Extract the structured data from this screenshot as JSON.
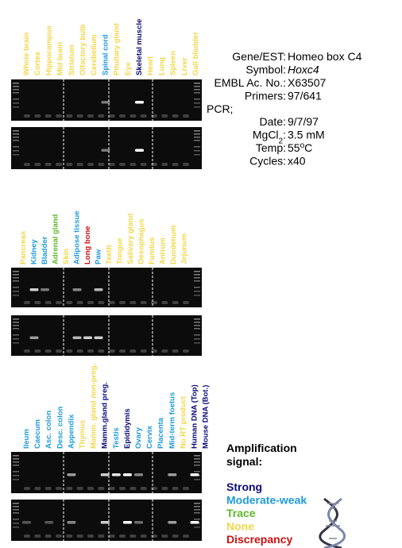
{
  "panels": [
    {
      "labels": [
        {
          "label": "Whole brain",
          "color": "#f0d84a"
        },
        {
          "label": "Cortex",
          "color": "#f0d84a"
        },
        {
          "label": "Hippocampus",
          "color": "#f0d84a"
        },
        {
          "label": "Mid brain",
          "color": "#f0d84a"
        },
        {
          "label": "Striatum",
          "color": "#f0d84a"
        },
        {
          "label": "Olfactory bulb",
          "color": "#f0d84a"
        },
        {
          "label": "Cerebellum",
          "color": "#f0d84a"
        },
        {
          "label": "Spinal cord",
          "color": "#1e9bd7"
        },
        {
          "label": "Pituitary gland",
          "color": "#f0d84a"
        },
        {
          "label": "Eye",
          "color": "#f0d84a"
        },
        {
          "label": "Skeletal muscle",
          "color": "#0a0a7a"
        },
        {
          "label": "Heart",
          "color": "#f0d84a"
        },
        {
          "label": "Lung",
          "color": "#f0d84a"
        },
        {
          "label": "Spleen",
          "color": "#f0d84a"
        },
        {
          "label": "Liver",
          "color": "#f0d84a"
        },
        {
          "label": "Gall bladder",
          "color": "#f0d84a"
        }
      ]
    },
    {
      "labels": [
        {
          "label": "Pancreas",
          "color": "#f0d84a"
        },
        {
          "label": "Kidney",
          "color": "#1e9bd7"
        },
        {
          "label": "Bladder",
          "color": "#1e9bd7"
        },
        {
          "label": "Adrenal gland",
          "color": "#5cb82a"
        },
        {
          "label": "Skin",
          "color": "#f0d84a"
        },
        {
          "label": "Adipose tissue",
          "color": "#1e9bd7"
        },
        {
          "label": "Long bone",
          "color": "#cc1111"
        },
        {
          "label": "Paw",
          "color": "#1e9bd7"
        },
        {
          "label": "Teeth",
          "color": "#f0d84a"
        },
        {
          "label": "Tongue",
          "color": "#f0d84a"
        },
        {
          "label": "Salivary gland",
          "color": "#f0d84a"
        },
        {
          "label": "Oesophagus",
          "color": "#f0d84a"
        },
        {
          "label": "Fundus",
          "color": "#f0d84a"
        },
        {
          "label": "Antrum",
          "color": "#f0d84a"
        },
        {
          "label": "Duodenum",
          "color": "#f0d84a"
        },
        {
          "label": "Jejunum",
          "color": "#f0d84a"
        }
      ]
    },
    {
      "labels": [
        {
          "label": "Ileum",
          "color": "#1e9bd7"
        },
        {
          "label": "Caecum",
          "color": "#1e9bd7"
        },
        {
          "label": "Asc. colon",
          "color": "#1e9bd7"
        },
        {
          "label": "Desc. colon",
          "color": "#1e9bd7"
        },
        {
          "label": "Appendix",
          "color": "#1e9bd7"
        },
        {
          "label": "Thymus",
          "color": "#f0d84a"
        },
        {
          "label": "Mamm. gland non-preg.",
          "color": "#f0d84a"
        },
        {
          "label": "Mamm.gland preg.",
          "color": "#0a0a7a"
        },
        {
          "label": "Testis",
          "color": "#1e9bd7"
        },
        {
          "label": "Epididymis",
          "color": "#0a0a7a"
        },
        {
          "label": "Ovary",
          "color": "#1e9bd7"
        },
        {
          "label": "Cervix",
          "color": "#1e9bd7"
        },
        {
          "label": "Placenta",
          "color": "#1e9bd7"
        },
        {
          "label": "Mid-term foetus",
          "color": "#1e9bd7"
        },
        {
          "label": "No RT product",
          "color": "#f0d84a"
        },
        {
          "label": "Human DNA (Top)",
          "color": "#0a0a7a"
        },
        {
          "label": "Mouse DNA (Bot.)",
          "color": "#0a0a7a"
        }
      ]
    }
  ],
  "info": {
    "rows": [
      {
        "label": "Gene/EST:",
        "value": "Homeo box C4"
      },
      {
        "label": "Symbol:",
        "value": "Hoxc4"
      },
      {
        "label": "EMBL Ac. No.:",
        "value": "X63507"
      },
      {
        "label": "Primers:",
        "value": "97/641"
      }
    ],
    "pcr": "PCR;",
    "pcr_rows": [
      {
        "label": "Date:",
        "value": "9/7/97"
      },
      {
        "label": [
          "MgCl",
          "2",
          ":"
        ],
        "value": "3.5 mM"
      },
      {
        "label": "Temp:",
        "value": [
          "55",
          "o",
          "C"
        ]
      },
      {
        "label": "Cycles:",
        "value": "x40"
      }
    ]
  },
  "legend": {
    "title": [
      "Amplification",
      "signal:"
    ],
    "items": [
      {
        "label": "Strong",
        "color": "#0a0a7a"
      },
      {
        "label": "Moderate-weak",
        "color": "#1e9bd7"
      },
      {
        "label": "Trace",
        "color": "#5cb82a"
      },
      {
        "label": "None",
        "color": "#f0d84a"
      },
      {
        "label": "Discrepancy",
        "color": "#cc1111"
      }
    ]
  }
}
